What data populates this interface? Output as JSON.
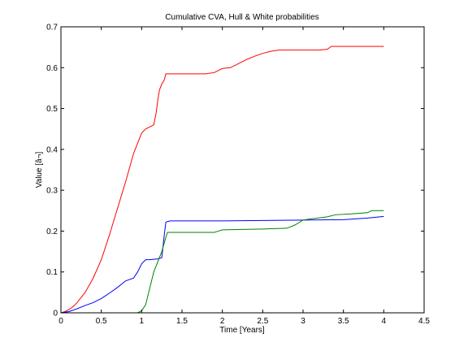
{
  "chart_data": {
    "type": "line",
    "title": "Cumulative CVA, Hull & White probabilities",
    "xlabel": "Time [Years]",
    "ylabel": "Value [â¬]",
    "xlim": [
      0,
      4.5
    ],
    "ylim": [
      0,
      0.7
    ],
    "xticks": [
      0,
      0.5,
      1,
      1.5,
      2,
      2.5,
      3,
      3.5,
      4,
      4.5
    ],
    "xtick_labels": [
      "0",
      "0.5",
      "1",
      "1.5",
      "2",
      "2.5",
      "3",
      "3.5",
      "4",
      "4.5"
    ],
    "yticks": [
      0,
      0.1,
      0.2,
      0.3,
      0.4,
      0.5,
      0.6,
      0.7
    ],
    "ytick_labels": [
      "0",
      "0.1",
      "0.2",
      "0.3",
      "0.4",
      "0.5",
      "0.6",
      "0.7"
    ],
    "grid": false,
    "legend": false,
    "series": [
      {
        "color": "#ff0000",
        "x": [
          0,
          0.05,
          0.1,
          0.15,
          0.2,
          0.3,
          0.4,
          0.5,
          0.6,
          0.7,
          0.8,
          0.9,
          0.95,
          1.0,
          1.05,
          1.1,
          1.15,
          1.18,
          1.2,
          1.22,
          1.25,
          1.28,
          1.3,
          1.35,
          1.5,
          1.8,
          1.9,
          1.95,
          2.0,
          2.1,
          2.2,
          2.3,
          2.4,
          2.5,
          2.6,
          2.7,
          3.0,
          3.2,
          3.3,
          3.35,
          3.6,
          3.8,
          4.0
        ],
        "y": [
          0,
          0.003,
          0.008,
          0.015,
          0.025,
          0.05,
          0.085,
          0.13,
          0.19,
          0.255,
          0.32,
          0.39,
          0.415,
          0.44,
          0.45,
          0.455,
          0.46,
          0.49,
          0.52,
          0.545,
          0.56,
          0.57,
          0.585,
          0.585,
          0.585,
          0.585,
          0.588,
          0.593,
          0.598,
          0.6,
          0.61,
          0.62,
          0.628,
          0.635,
          0.64,
          0.643,
          0.643,
          0.643,
          0.645,
          0.652,
          0.652,
          0.652,
          0.652
        ]
      },
      {
        "color": "#0000ff",
        "x": [
          0,
          0.1,
          0.2,
          0.3,
          0.4,
          0.5,
          0.6,
          0.7,
          0.8,
          0.9,
          0.95,
          1.0,
          1.05,
          1.1,
          1.2,
          1.25,
          1.28,
          1.3,
          1.35,
          1.5,
          2.0,
          2.5,
          3.0,
          3.5,
          3.8,
          4.0
        ],
        "y": [
          0,
          0.003,
          0.01,
          0.018,
          0.025,
          0.035,
          0.048,
          0.062,
          0.078,
          0.085,
          0.1,
          0.12,
          0.13,
          0.13,
          0.132,
          0.135,
          0.19,
          0.222,
          0.225,
          0.225,
          0.225,
          0.226,
          0.227,
          0.228,
          0.232,
          0.236
        ]
      },
      {
        "color": "#008000",
        "x": [
          0,
          0.5,
          0.95,
          1.0,
          1.05,
          1.1,
          1.15,
          1.2,
          1.25,
          1.3,
          1.32,
          1.5,
          1.9,
          1.95,
          2.0,
          2.5,
          2.8,
          2.9,
          3.0,
          3.1,
          3.3,
          3.4,
          3.6,
          3.8,
          3.85,
          4.0
        ],
        "y": [
          0,
          0,
          0,
          0.005,
          0.02,
          0.06,
          0.1,
          0.125,
          0.15,
          0.185,
          0.197,
          0.197,
          0.197,
          0.2,
          0.203,
          0.205,
          0.207,
          0.215,
          0.227,
          0.23,
          0.235,
          0.24,
          0.242,
          0.245,
          0.25,
          0.25
        ]
      }
    ]
  }
}
